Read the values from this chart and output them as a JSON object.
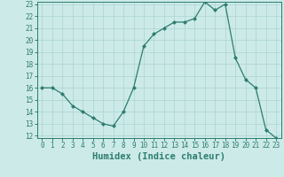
{
  "xlabel": "Humidex (Indice chaleur)",
  "x_values": [
    0,
    1,
    2,
    3,
    4,
    5,
    6,
    7,
    8,
    9,
    10,
    11,
    12,
    13,
    14,
    15,
    16,
    17,
    18,
    19,
    20,
    21,
    22,
    23
  ],
  "y_values": [
    16,
    16,
    15.5,
    14.5,
    14,
    13.5,
    13,
    12.8,
    14,
    16,
    19.5,
    20.5,
    21,
    21.5,
    21.5,
    21.8,
    23.2,
    22.5,
    23,
    18.5,
    16.7,
    16,
    12.5,
    11.8
  ],
  "line_color": "#2d7d6f",
  "marker": "D",
  "marker_size": 2.0,
  "background_color": "#cceae8",
  "grid_color": "#aad4d0",
  "ylim": [
    12,
    23
  ],
  "xlim": [
    -0.5,
    23.5
  ],
  "yticks": [
    12,
    13,
    14,
    15,
    16,
    17,
    18,
    19,
    20,
    21,
    22,
    23
  ],
  "xticks": [
    0,
    1,
    2,
    3,
    4,
    5,
    6,
    7,
    8,
    9,
    10,
    11,
    12,
    13,
    14,
    15,
    16,
    17,
    18,
    19,
    20,
    21,
    22,
    23
  ],
  "tick_fontsize": 5.5,
  "xlabel_fontsize": 7.5
}
